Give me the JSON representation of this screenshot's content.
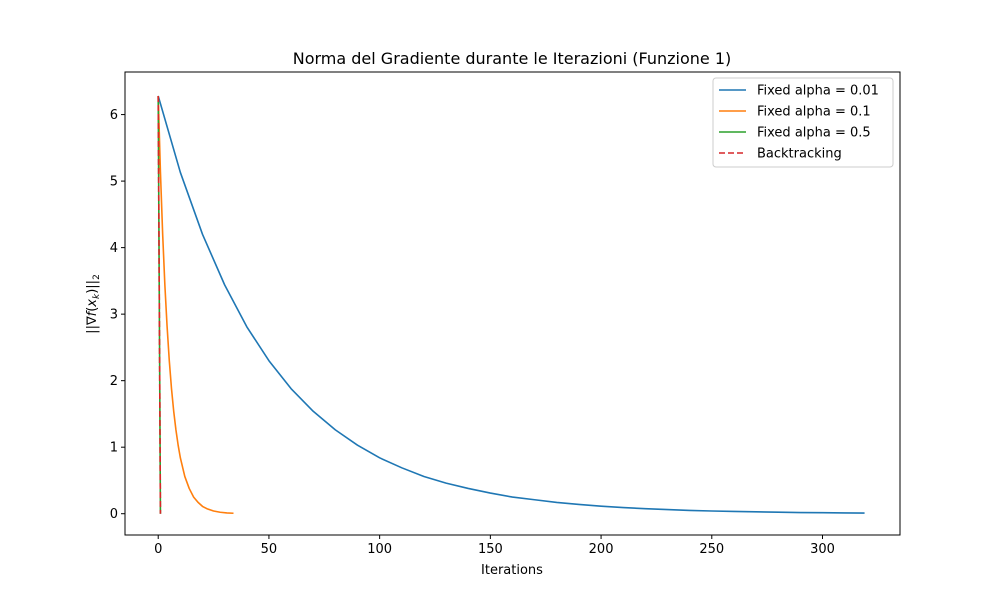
{
  "chart_data": {
    "type": "line",
    "title": "Norma del Gradiente durante le Iterazioni (Funzione 1)",
    "xlabel": "Iterations",
    "ylabel": "||∇f(x_k)||_2",
    "xlim": [
      -15,
      335
    ],
    "ylim": [
      -0.32,
      6.64
    ],
    "xticks": [
      0,
      50,
      100,
      150,
      200,
      250,
      300
    ],
    "yticks": [
      0,
      1,
      2,
      3,
      4,
      5,
      6
    ],
    "grid": false,
    "legend_position": "top-right",
    "series": [
      {
        "name": "Fixed alpha = 0.01",
        "color": "#1f77b4",
        "dash": "solid",
        "x": [
          0,
          10,
          20,
          30,
          40,
          50,
          60,
          70,
          80,
          90,
          100,
          110,
          120,
          130,
          140,
          150,
          160,
          170,
          180,
          190,
          200,
          210,
          220,
          230,
          240,
          250,
          260,
          270,
          280,
          290,
          300,
          310,
          319
        ],
        "y": [
          6.28,
          5.13,
          4.2,
          3.44,
          2.81,
          2.3,
          1.88,
          1.54,
          1.26,
          1.03,
          0.84,
          0.69,
          0.56,
          0.46,
          0.38,
          0.31,
          0.25,
          0.21,
          0.17,
          0.14,
          0.113,
          0.092,
          0.076,
          0.062,
          0.05,
          0.041,
          0.034,
          0.028,
          0.023,
          0.018,
          0.015,
          0.012,
          0.01
        ]
      },
      {
        "name": "Fixed alpha = 0.1",
        "color": "#ff7f0e",
        "dash": "solid",
        "x": [
          0,
          1,
          2,
          3,
          4,
          5,
          6,
          7,
          8,
          9,
          10,
          12,
          14,
          16,
          18,
          20,
          22,
          25,
          28,
          31,
          34
        ],
        "y": [
          6.28,
          5.14,
          4.21,
          3.44,
          2.82,
          2.3,
          1.88,
          1.54,
          1.26,
          1.03,
          0.84,
          0.56,
          0.38,
          0.25,
          0.17,
          0.11,
          0.075,
          0.041,
          0.022,
          0.012,
          0.007
        ]
      },
      {
        "name": "Fixed alpha = 0.5",
        "color": "#2ca02c",
        "dash": "solid",
        "x": [
          0,
          1
        ],
        "y": [
          6.28,
          0
        ]
      },
      {
        "name": "Backtracking",
        "color": "#d62728",
        "dash": "dashed",
        "x": [
          0,
          1
        ],
        "y": [
          6.28,
          0
        ]
      }
    ]
  }
}
